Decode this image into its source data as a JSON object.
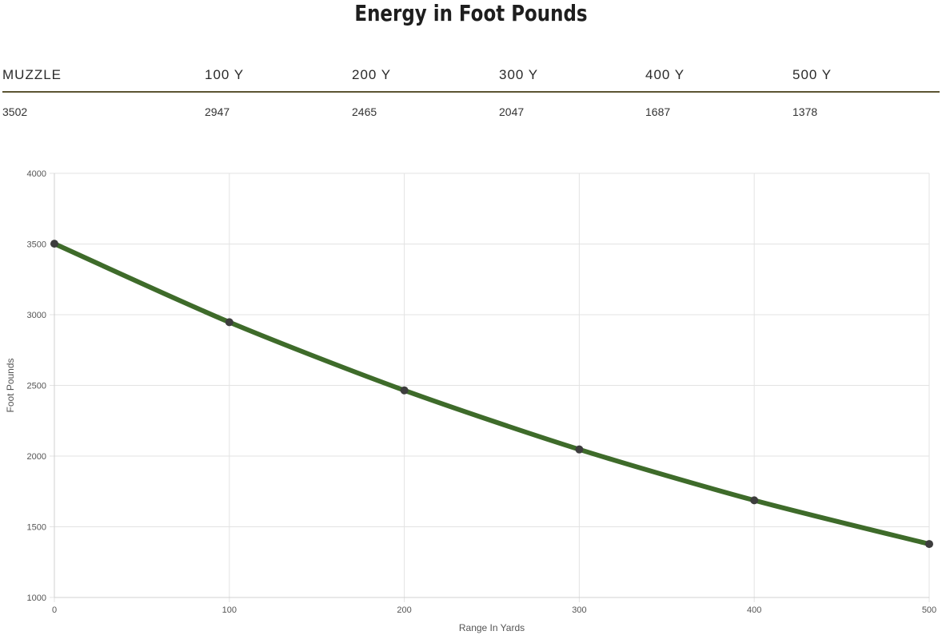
{
  "title": "Energy in Foot Pounds",
  "table": {
    "headers": [
      "MUZZLE",
      "100 Y",
      "200 Y",
      "300 Y",
      "400 Y",
      "500 Y"
    ],
    "values": [
      "3502",
      "2947",
      "2465",
      "2047",
      "1687",
      "1378"
    ]
  },
  "colors": {
    "line": "#3e6b2a",
    "point": "#3d3d3d",
    "grid": "#e3e3e3",
    "divider": "#5c5432"
  },
  "chart_data": {
    "type": "line",
    "title": "",
    "xlabel": "Range In Yards",
    "ylabel": "Foot Pounds",
    "x": [
      0,
      100,
      200,
      300,
      400,
      500
    ],
    "series": [
      {
        "name": "Energy in Foot Pounds",
        "values": [
          3502,
          2947,
          2465,
          2047,
          1687,
          1378
        ]
      }
    ],
    "xlim": [
      0,
      500
    ],
    "ylim": [
      1000,
      4000
    ],
    "xticks": [
      "0",
      "100",
      "200",
      "300",
      "400",
      "500"
    ],
    "yticks": [
      "1000",
      "1500",
      "2000",
      "2500",
      "3000",
      "3500",
      "4000"
    ],
    "grid": true,
    "legend": "none"
  }
}
